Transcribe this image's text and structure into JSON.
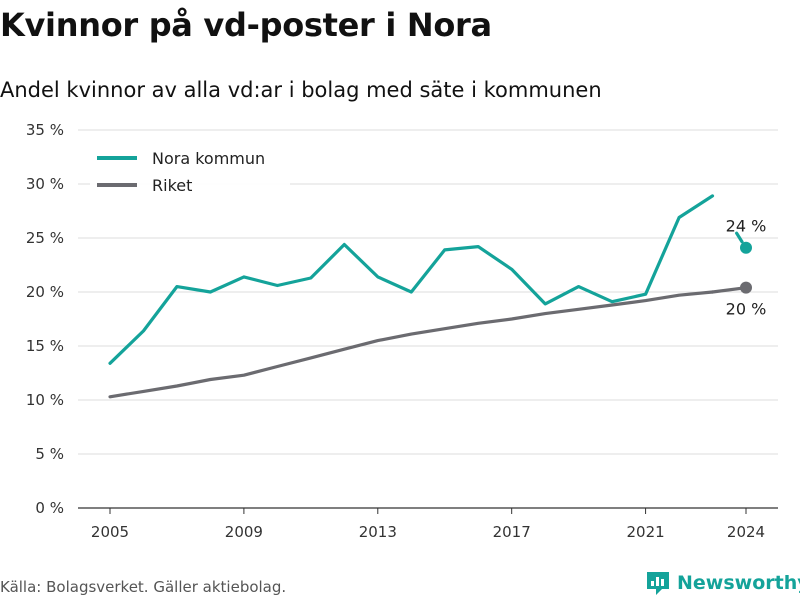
{
  "title": "Kvinnor på vd-poster i Nora",
  "subtitle": "Andel kvinnor av alla vd:ar i bolag med säte i kommunen",
  "source": "Källa: Bolagsverket. Gäller aktiebolag.",
  "brand": {
    "name": "Newsworthy",
    "icon": "newsworthy-logo-icon",
    "color": "#14a39a"
  },
  "chart_data": {
    "type": "line",
    "title": "Kvinnor på vd-poster i Nora",
    "subtitle": "Andel kvinnor av alla vd:ar i bolag med säte i kommunen",
    "xlabel": "",
    "ylabel": "",
    "x": [
      2005,
      2006,
      2007,
      2008,
      2009,
      2010,
      2011,
      2012,
      2013,
      2014,
      2015,
      2016,
      2017,
      2018,
      2019,
      2020,
      2021,
      2022,
      2023,
      2024
    ],
    "x_ticks": [
      2005,
      2009,
      2013,
      2017,
      2021,
      2024
    ],
    "y_ticks": [
      0,
      5,
      10,
      15,
      20,
      25,
      30,
      35
    ],
    "y_tick_labels": [
      "0 %",
      "5 %",
      "10 %",
      "15 %",
      "20 %",
      "25 %",
      "30 %",
      "35 %"
    ],
    "xlim": [
      2005,
      2024
    ],
    "ylim": [
      0,
      35
    ],
    "grid": true,
    "legend": "top-left",
    "series": [
      {
        "name": "Nora kommun",
        "color": "#14a39a",
        "values": [
          13.4,
          16.4,
          20.5,
          20.0,
          21.4,
          20.6,
          21.3,
          24.4,
          21.4,
          20.0,
          23.9,
          24.2,
          22.1,
          18.9,
          20.5,
          19.1,
          19.8,
          26.9,
          28.9,
          24.1
        ],
        "end_label": "24 %"
      },
      {
        "name": "Riket",
        "color": "#6b6b70",
        "values": [
          10.3,
          10.8,
          11.3,
          11.9,
          12.3,
          13.1,
          13.9,
          14.7,
          15.5,
          16.1,
          16.6,
          17.1,
          17.5,
          18.0,
          18.4,
          18.8,
          19.2,
          19.7,
          20.0,
          20.4
        ],
        "end_label": "20 %"
      }
    ]
  }
}
